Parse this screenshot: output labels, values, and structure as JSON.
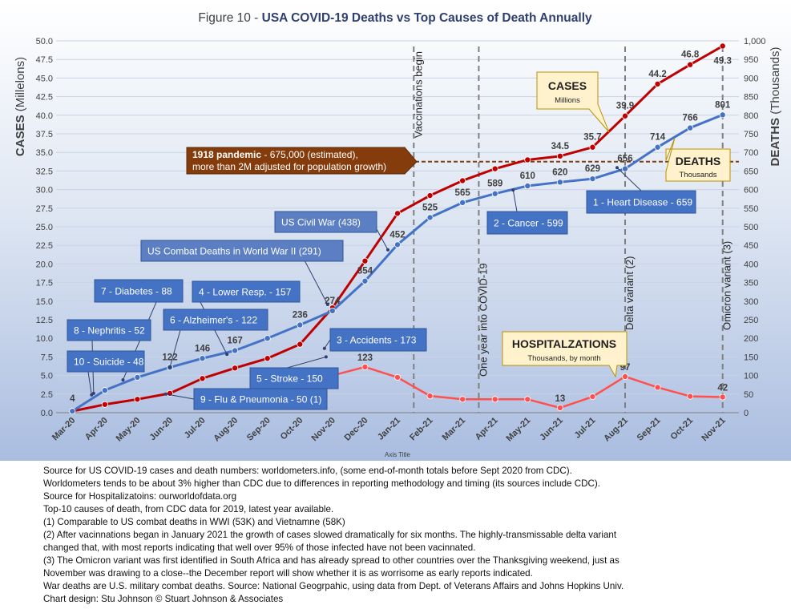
{
  "chart_data": {
    "type": "line",
    "title_prefix": "Figure 10 - ",
    "title_main": "USA COVID-19 Deaths vs Top Causes of Death Annually",
    "categories": [
      "Mar-20",
      "Apr-20",
      "May-20",
      "Jun-20",
      "Jul-20",
      "Aug-20",
      "Sep-20",
      "Oct-20",
      "Nov-20",
      "Dec-20",
      "Jan-21",
      "Feb-21",
      "Mar-21",
      "Apr-21",
      "May-21",
      "Jun-21",
      "Jul-21",
      "Aug-21",
      "Sep-21",
      "Oct-21",
      "Nov-21"
    ],
    "xlabel": "Axis Title",
    "ylabel_left_bold": "CASES",
    "ylabel_left_unit": "(Millelons)",
    "ylabel_right_bold": "DEATHS",
    "ylabel_right_unit": "(Thousands)",
    "ylim_left": [
      0,
      50
    ],
    "ylim_right": [
      0,
      1000
    ],
    "yticks_left": [
      "0.0",
      "2.5",
      "5.0",
      "7.5",
      "10.0",
      "12.5",
      "15.0",
      "17.5",
      "20.0",
      "22.5",
      "25.0",
      "27.5",
      "30.0",
      "32.5",
      "35.0",
      "37.5",
      "40.0",
      "42.5",
      "45.0",
      "47.5",
      "50.0"
    ],
    "yticks_right": [
      "0",
      "50",
      "100",
      "150",
      "200",
      "250",
      "300",
      "350",
      "400",
      "450",
      "500",
      "550",
      "600",
      "650",
      "700",
      "750",
      "800",
      "850",
      "900",
      "950",
      "1,000"
    ],
    "series": [
      {
        "name": "CASES",
        "axis": "left",
        "color": "#c00000",
        "values": [
          0.2,
          1.1,
          1.8,
          2.6,
          4.6,
          6.0,
          7.3,
          9.2,
          14.1,
          20.4,
          26.8,
          29.2,
          31.2,
          32.8,
          34.0,
          34.5,
          35.7,
          39.9,
          44.2,
          46.8,
          49.3
        ],
        "labels": [
          "",
          "",
          "",
          "",
          "",
          "",
          "",
          "",
          "",
          "",
          "",
          "",
          "",
          "",
          "",
          "34.5",
          "35.7",
          "39.9",
          "44.2",
          "46.8",
          "49.3"
        ]
      },
      {
        "name": "DEATHS",
        "axis": "right",
        "color": "#4472c4",
        "values": [
          4,
          60,
          95,
          122,
          146,
          167,
          200,
          236,
          274,
          354,
          452,
          525,
          565,
          589,
          610,
          620,
          629,
          656,
          714,
          766,
          801
        ],
        "labels": [
          "4",
          "",
          "",
          "122",
          "146",
          "167",
          "",
          "236",
          "274",
          "354",
          "452",
          "525",
          "565",
          "589",
          "610",
          "620",
          "629",
          "656",
          "714",
          "766",
          "801"
        ]
      },
      {
        "name": "HOSPITALZATIONS",
        "axis": "right",
        "color": "#ff5050",
        "values": [
          null,
          null,
          null,
          null,
          null,
          null,
          null,
          null,
          100,
          123,
          95,
          45,
          36,
          36,
          36,
          13,
          43,
          97,
          68,
          44,
          42
        ],
        "labels": [
          "",
          "",
          "",
          "",
          "",
          "",
          "",
          "",
          "",
          "123",
          "",
          "",
          "",
          "",
          "",
          "13",
          "",
          "97",
          "",
          "",
          "42"
        ]
      }
    ],
    "reference_lines": [
      {
        "label": "1918 pandemic",
        "text": " - 675,000 (estimated),",
        "text2": "more than 2M adjusted for population growth)",
        "value": 675,
        "axis": "right"
      }
    ],
    "events": [
      {
        "label": "Vaccinations begin",
        "at": 10.5
      },
      {
        "label": "One year into COVID-19",
        "at": 12.5
      },
      {
        "label": "Delta variant (2)",
        "at": 17
      },
      {
        "label": "Omicron variant (3)",
        "at": 20
      }
    ],
    "cause_callouts": [
      {
        "text": "1 - Heart Disease - 659",
        "value": 659
      },
      {
        "text": "2 - Cancer - 599",
        "value": 599
      },
      {
        "text": "3 - Accidents - 173",
        "value": 173
      },
      {
        "text": "4 - Lower Resp.  - 157",
        "value": 157
      },
      {
        "text": "5 -  Stroke - 150",
        "value": 150
      },
      {
        "text": "6 - Alzheimer's - 122",
        "value": 122
      },
      {
        "text": "7 - Diabetes - 88",
        "value": 88
      },
      {
        "text": "8 - Nephritis - 52",
        "value": 52
      },
      {
        "text": "9 - Flu & Pneumonia - 50 (1)",
        "value": 50
      },
      {
        "text": "10 - Suicide - 48",
        "value": 48
      }
    ],
    "war_callouts": [
      {
        "text": "US Civil War (438)",
        "value": 438
      },
      {
        "text": "US Combat Deaths in World War II (291)",
        "value": 291
      }
    ],
    "series_callouts": {
      "cases_title": "CASES",
      "cases_sub": "Millions",
      "deaths_title": "DEATHS",
      "deaths_sub": "Thousands",
      "hosp_title": "HOSPITALZATIONS",
      "hosp_sub": "Thousands, by month"
    },
    "grid": true,
    "legend": "none"
  },
  "notes": [
    "Source for US COVID-19 cases and death numbers: worldometers.info, (some end-of-month totals before Sept 2020 from CDC).",
    "Worldometers tends to be about 3% higher than CDC due to differences in reporting methodology and timing (its sources include CDC).",
    "Source for Hospitalizatoins: ourworldofdata.org",
    "Top-10 causes of death, from CDC data for 2019, latest year available.",
    "(1) Comparable to US combat deaths in WWI (53K) and Vietnamne (58K)",
    "(2) After vacinnations began in January 2021 the growth of cases slowed dramatically for six months. The highly-transmissable delta variant",
    "changed that, with most reports indicating that well over 95% of those infected have not been vacinnated.",
    "(3) The Omicron variant was first identified in South Africa and has already spread to other countries over the Thanksgiving weekend, just as",
    "November was drawing to a close--the December report will show whether it is as worrisome as early reports indicated.",
    "War deaths are U.S. military combat deaths.  Source: National Geogrpahic, using data from Dept. of Veterans Affairs and Johns Hopkins Univ.",
    "Chart design: Stu Johnson © Stuart Johnson & Associates"
  ]
}
